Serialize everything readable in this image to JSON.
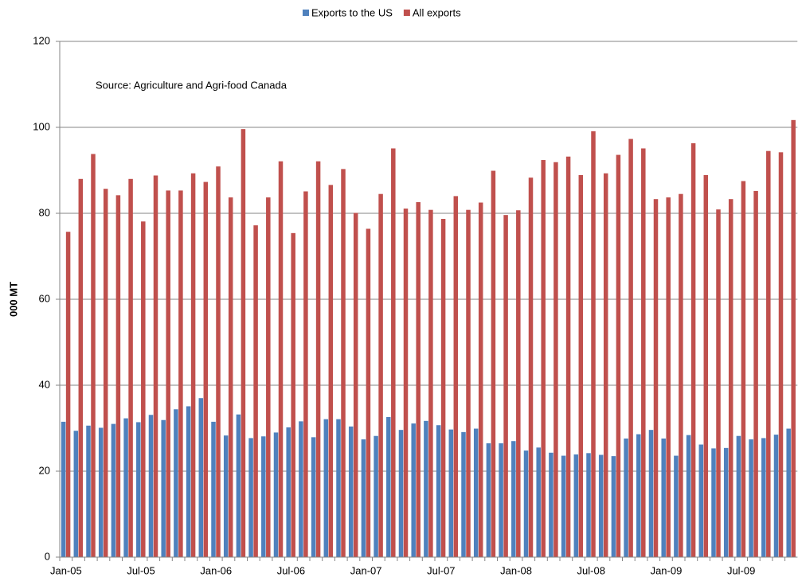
{
  "chart_data": {
    "type": "bar",
    "annotation": "Source: Agriculture and Agri-food Canada",
    "y_label": "000 MT",
    "categories": [
      "Jan-05",
      null,
      null,
      null,
      null,
      null,
      "Jul-05",
      null,
      null,
      null,
      null,
      null,
      "Jan-06",
      null,
      null,
      null,
      null,
      null,
      "Jul-06",
      null,
      null,
      null,
      null,
      null,
      "Jan-07",
      null,
      null,
      null,
      null,
      null,
      "Jul-07",
      null,
      null,
      null,
      null,
      null,
      "Jan-08",
      null,
      null,
      null,
      null,
      null,
      "Jul-08",
      null,
      null,
      null,
      null,
      null,
      "Jan-09",
      null,
      null,
      null,
      null,
      null,
      "Jul-09",
      null,
      null,
      null,
      null
    ],
    "series": [
      {
        "name": "Exports to the US",
        "color": "#4f81bd",
        "values": [
          31.5,
          29.4,
          30.6,
          30.1,
          31,
          32.3,
          31.4,
          33.1,
          31.9,
          34.4,
          35.1,
          37,
          31.5,
          28.3,
          33.2,
          27.7,
          28.1,
          29,
          30.2,
          31.6,
          27.9,
          32.1,
          32.1,
          30.4,
          27.4,
          28.2,
          32.6,
          29.6,
          31.1,
          31.7,
          30.7,
          29.7,
          29.1,
          29.9,
          26.5,
          26.5,
          27,
          24.8,
          25.5,
          24.3,
          23.6,
          23.9,
          24.2,
          23.8,
          23.5,
          27.6,
          28.6,
          29.6,
          27.6,
          23.6,
          28.4,
          26.2,
          25.3,
          25.4,
          28.2,
          27.4,
          27.7,
          28.5,
          29.9
        ]
      },
      {
        "name": "All exports",
        "color": "#c0504d",
        "values": [
          75.7,
          88,
          93.8,
          85.7,
          84.2,
          88,
          78.1,
          88.8,
          85.3,
          85.3,
          89.3,
          87.3,
          90.9,
          83.7,
          99.6,
          77.2,
          83.7,
          92.1,
          75.4,
          85.1,
          92.1,
          86.6,
          90.3,
          80.1,
          76.4,
          84.5,
          95.1,
          81.1,
          82.6,
          80.8,
          78.7,
          84,
          80.8,
          82.5,
          89.9,
          79.6,
          80.7,
          88.3,
          92.4,
          91.9,
          93.2,
          88.9,
          99.1,
          89.3,
          93.6,
          97.3,
          95.1,
          83.3,
          83.7,
          84.5,
          96.3,
          88.9,
          80.9,
          83.3,
          87.5,
          85.2,
          94.5,
          94.2,
          101.7
        ]
      }
    ],
    "ylim": [
      0,
      120
    ],
    "yticks": [
      0,
      20,
      40,
      60,
      80,
      100,
      120
    ],
    "grid": true,
    "legend": "top"
  }
}
